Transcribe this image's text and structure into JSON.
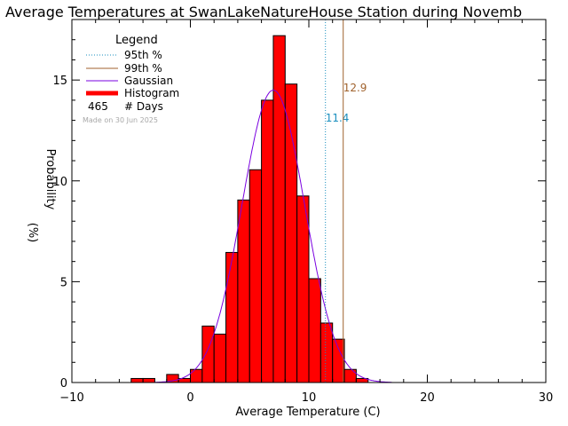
{
  "chart_data": {
    "type": "bar",
    "title": "Average Temperatures at SwanLakeNatureHouse Station during Novemb",
    "xlabel": "Average Temperature (C)",
    "ylabel_line1": "Probability",
    "ylabel_line2": "(%)",
    "xlim": [
      -10,
      30
    ],
    "ylim": [
      0,
      18
    ],
    "x_ticks": [
      -10,
      0,
      10,
      20,
      30
    ],
    "x_tick_labels": [
      "−10",
      "0",
      "10",
      "20",
      "30"
    ],
    "y_ticks": [
      0,
      5,
      10,
      15
    ],
    "y_tick_labels": [
      "0",
      "5",
      "10",
      "15"
    ],
    "histogram": {
      "bin_width": 1,
      "bin_starts": [
        -5,
        -4,
        -2,
        -1,
        0,
        1,
        2,
        3,
        4,
        5,
        6,
        7,
        8,
        9,
        10,
        11,
        12,
        13,
        14
      ],
      "values": [
        0.2,
        0.2,
        0.4,
        0.2,
        0.65,
        2.8,
        2.4,
        6.45,
        9.05,
        10.55,
        14.0,
        17.2,
        14.8,
        9.25,
        5.15,
        2.95,
        2.15,
        0.65,
        0.2
      ]
    },
    "gaussian": {
      "mean": 7.0,
      "sigma": 2.65,
      "peak": 14.5
    },
    "percentile_lines": [
      {
        "label": "95th %",
        "value": 11.4,
        "value_text": "11.4",
        "color": "#1a8fbf",
        "style": "dotted"
      },
      {
        "label": "99th %",
        "value": 12.9,
        "value_text": "12.9",
        "color": "#a0622d",
        "style": "solid"
      }
    ],
    "legend": {
      "title": "Legend",
      "position": "top-left",
      "entries": [
        {
          "label": "95th %",
          "color": "#1a8fbf",
          "style": "dotted"
        },
        {
          "label": "99th %",
          "color": "#a0622d",
          "style": "solid"
        },
        {
          "label": "Gaussian",
          "color": "#7a00e0",
          "style": "solid"
        },
        {
          "label": "Histogram",
          "color": "#ff0000",
          "style": "thick"
        }
      ],
      "days_count": "465",
      "days_label": "# Days",
      "made_on": "Made on 30 Jun 2025"
    },
    "colors": {
      "histogram": "#ff0000",
      "gaussian": "#7a00e0"
    }
  }
}
